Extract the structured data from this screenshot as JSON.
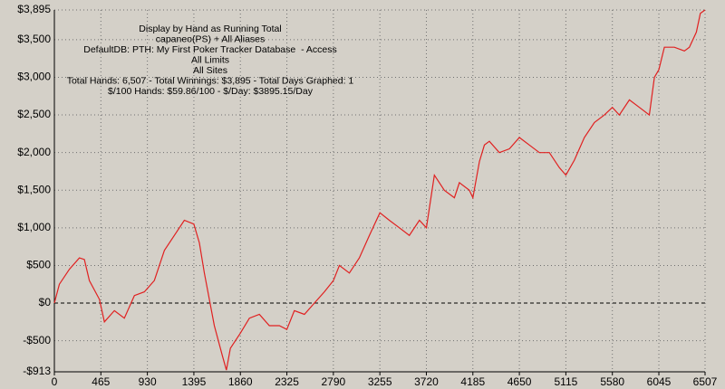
{
  "chart_data": {
    "type": "line",
    "annotations": [
      "Display by Hand as Running Total",
      "capaneo(PS) + All Aliases",
      "DefaultDB: PTH: My First Poker Tracker Database  - Access",
      "All Limits",
      "All Sites",
      "Total Hands: 6,507 - Total Winnings: $3,895 - Total Days Graphed: 1",
      "$/100 Hands: $59.86/100 - $/Day: $3895.15/Day"
    ],
    "x": [
      0,
      50,
      150,
      250,
      300,
      350,
      450,
      500,
      600,
      700,
      800,
      900,
      1000,
      1100,
      1200,
      1300,
      1395,
      1450,
      1500,
      1600,
      1680,
      1720,
      1760,
      1860,
      1950,
      2050,
      2150,
      2250,
      2325,
      2400,
      2500,
      2600,
      2700,
      2790,
      2850,
      2950,
      3050,
      3150,
      3255,
      3350,
      3450,
      3550,
      3650,
      3720,
      3800,
      3900,
      4000,
      4050,
      4150,
      4185,
      4250,
      4300,
      4350,
      4450,
      4550,
      4650,
      4750,
      4850,
      4950,
      5050,
      5115,
      5200,
      5300,
      5400,
      5500,
      5580,
      5650,
      5750,
      5850,
      5950,
      6000,
      6045,
      6100,
      6200,
      6300,
      6350,
      6420,
      6460,
      6507
    ],
    "series": [
      {
        "name": "Running Total",
        "color": "#e02020",
        "values": [
          0,
          250,
          450,
          600,
          580,
          300,
          50,
          -250,
          -100,
          -200,
          100,
          150,
          300,
          700,
          900,
          1100,
          1050,
          800,
          400,
          -300,
          -700,
          -890,
          -600,
          -400,
          -200,
          -150,
          -300,
          -300,
          -350,
          -100,
          -150,
          0,
          150,
          300,
          500,
          400,
          600,
          900,
          1200,
          1100,
          1000,
          900,
          1100,
          1000,
          1700,
          1500,
          1400,
          1600,
          1500,
          1400,
          1880,
          2100,
          2150,
          2000,
          2050,
          2200,
          2100,
          2000,
          2000,
          1800,
          1700,
          1900,
          2200,
          2400,
          2500,
          2600,
          2500,
          2700,
          2600,
          2500,
          3000,
          3100,
          3400,
          3400,
          3350,
          3400,
          3600,
          3850,
          3895
        ]
      }
    ],
    "xlim": [
      0,
      6507
    ],
    "ylim": [
      -913,
      3895
    ],
    "xticks": [
      0,
      465,
      930,
      1395,
      1860,
      2325,
      2790,
      3255,
      3720,
      4185,
      4650,
      5115,
      5580,
      6045,
      6507
    ],
    "yticks": [
      {
        "value": -913,
        "label": "-$913"
      },
      {
        "value": -500,
        "label": "-$500"
      },
      {
        "value": 0,
        "label": "$0"
      },
      {
        "value": 500,
        "label": "$500"
      },
      {
        "value": 1000,
        "label": "$1,000"
      },
      {
        "value": 1500,
        "label": "$1,500"
      },
      {
        "value": 2000,
        "label": "$2,000"
      },
      {
        "value": 2500,
        "label": "$2,500"
      },
      {
        "value": 3000,
        "label": "$3,000"
      },
      {
        "value": 3500,
        "label": "$3,500"
      },
      {
        "value": 3895,
        "label": "$3,895"
      }
    ],
    "grid": true,
    "zero_line": true
  }
}
